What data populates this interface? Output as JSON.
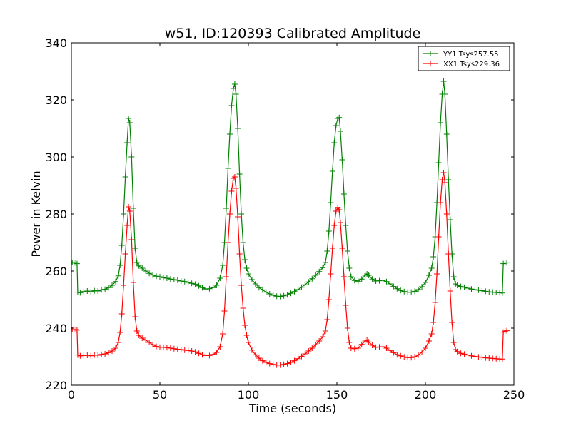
{
  "chart_data": {
    "type": "line",
    "title": "w51, ID:120393 Calibrated Amplitude",
    "xlabel": "Time (seconds)",
    "ylabel": "Power in Kelvin",
    "xlim": [
      0,
      250
    ],
    "ylim": [
      220,
      340
    ],
    "xticks": [
      0,
      50,
      100,
      150,
      200,
      250
    ],
    "yticks": [
      220,
      240,
      260,
      280,
      300,
      320,
      340
    ],
    "grid": false,
    "legend_position": "top-right",
    "marker": "+",
    "series": [
      {
        "name": "YY1 Tsys257.55",
        "color": "#008000",
        "points": [
          [
            0.5,
            263
          ],
          [
            1.5,
            262.8
          ],
          [
            2.5,
            262.9
          ],
          [
            3.2,
            262.6
          ],
          [
            3.6,
            252.6
          ],
          [
            5,
            252.4
          ],
          [
            7,
            252.8
          ],
          [
            9,
            253.0
          ],
          [
            11,
            252.7
          ],
          [
            13,
            253.1
          ],
          [
            15,
            253.0
          ],
          [
            17,
            253.4
          ],
          [
            19,
            253.6
          ],
          [
            21,
            254.2
          ],
          [
            23,
            255.0
          ],
          [
            25,
            256.3
          ],
          [
            26.5,
            258.3
          ],
          [
            27.5,
            262
          ],
          [
            28.5,
            269
          ],
          [
            29.5,
            280
          ],
          [
            30.5,
            293
          ],
          [
            31.5,
            305
          ],
          [
            32.3,
            313.5
          ],
          [
            33,
            312
          ],
          [
            34,
            300
          ],
          [
            35,
            282
          ],
          [
            36,
            268
          ],
          [
            37,
            263
          ],
          [
            38,
            261.8
          ],
          [
            40,
            261
          ],
          [
            42,
            260
          ],
          [
            44,
            259.2
          ],
          [
            46,
            258.6
          ],
          [
            48,
            258.2
          ],
          [
            50,
            258
          ],
          [
            52,
            257.7
          ],
          [
            54,
            257.5
          ],
          [
            56,
            257.2
          ],
          [
            58,
            257.0
          ],
          [
            60,
            256.8
          ],
          [
            62,
            256.5
          ],
          [
            64,
            256.3
          ],
          [
            66,
            256
          ],
          [
            68,
            255.7
          ],
          [
            70,
            255.4
          ],
          [
            72,
            254.8
          ],
          [
            74,
            254.2
          ],
          [
            76,
            253.7
          ],
          [
            78,
            253.8
          ],
          [
            80,
            254.2
          ],
          [
            82,
            255
          ],
          [
            84,
            257.5
          ],
          [
            85.5,
            262
          ],
          [
            86.5,
            270
          ],
          [
            87.5,
            282
          ],
          [
            88.5,
            296
          ],
          [
            89.5,
            308
          ],
          [
            90.5,
            318
          ],
          [
            91.5,
            324
          ],
          [
            92.3,
            325.5
          ],
          [
            93,
            322
          ],
          [
            94,
            310
          ],
          [
            95,
            294
          ],
          [
            96,
            280
          ],
          [
            97,
            270
          ],
          [
            98,
            264
          ],
          [
            99,
            261
          ],
          [
            100,
            259
          ],
          [
            102,
            257
          ],
          [
            104,
            255.5
          ],
          [
            106,
            254.2
          ],
          [
            108,
            253.4
          ],
          [
            110,
            252.6
          ],
          [
            112,
            252.0
          ],
          [
            114,
            251.5
          ],
          [
            116,
            251.2
          ],
          [
            118,
            251.1
          ],
          [
            120,
            251.3
          ],
          [
            122,
            251.7
          ],
          [
            124,
            252.2
          ],
          [
            126,
            252.8
          ],
          [
            128,
            253.5
          ],
          [
            130,
            254.3
          ],
          [
            132,
            255.2
          ],
          [
            134,
            256.2
          ],
          [
            136,
            257.3
          ],
          [
            138,
            258.5
          ],
          [
            140,
            259.8
          ],
          [
            142,
            261.2
          ],
          [
            143.5,
            263
          ],
          [
            144.5,
            267
          ],
          [
            145.5,
            274
          ],
          [
            146.5,
            284
          ],
          [
            147.5,
            295
          ],
          [
            148.5,
            305
          ],
          [
            149.5,
            311
          ],
          [
            150.5,
            313.5
          ],
          [
            151.3,
            313.8
          ],
          [
            152,
            309
          ],
          [
            153,
            299
          ],
          [
            154,
            287
          ],
          [
            155,
            276
          ],
          [
            156,
            267
          ],
          [
            157,
            261
          ],
          [
            158,
            258
          ],
          [
            160,
            256.7
          ],
          [
            162,
            256.4
          ],
          [
            164,
            257.2
          ],
          [
            166,
            258.5
          ],
          [
            167,
            259
          ],
          [
            168,
            258.5
          ],
          [
            170,
            257.2
          ],
          [
            172,
            256.5
          ],
          [
            174,
            256.6
          ],
          [
            176,
            256.8
          ],
          [
            178,
            256.3
          ],
          [
            180,
            255.5
          ],
          [
            182,
            254.6
          ],
          [
            184,
            253.8
          ],
          [
            186,
            253.2
          ],
          [
            188,
            252.8
          ],
          [
            190,
            252.6
          ],
          [
            192,
            252.6
          ],
          [
            194,
            252.9
          ],
          [
            196,
            253.5
          ],
          [
            198,
            254.5
          ],
          [
            200,
            256
          ],
          [
            202,
            258.5
          ],
          [
            203.5,
            261
          ],
          [
            204.5,
            265
          ],
          [
            205.5,
            272
          ],
          [
            206.5,
            284
          ],
          [
            207.5,
            298
          ],
          [
            208.5,
            312
          ],
          [
            209.5,
            322
          ],
          [
            210.3,
            326.5
          ],
          [
            211,
            322
          ],
          [
            212,
            308
          ],
          [
            213,
            292
          ],
          [
            214,
            278
          ],
          [
            215,
            266
          ],
          [
            216,
            258
          ],
          [
            217,
            255.5
          ],
          [
            218,
            255.0
          ],
          [
            220,
            254.6
          ],
          [
            222,
            254.3
          ],
          [
            224,
            254.0
          ],
          [
            226,
            253.7
          ],
          [
            228,
            253.5
          ],
          [
            230,
            253.3
          ],
          [
            232,
            253.1
          ],
          [
            234,
            252.9
          ],
          [
            236,
            252.7
          ],
          [
            238,
            252.6
          ],
          [
            240,
            252.5
          ],
          [
            242,
            252.4
          ],
          [
            243.5,
            252.3
          ],
          [
            244,
            262.6
          ],
          [
            245,
            262.8
          ],
          [
            246,
            262.9
          ]
        ]
      },
      {
        "name": "XX1 Tsys229.36",
        "color": "#ff0000",
        "points": [
          [
            0.5,
            239.5
          ],
          [
            1.5,
            239.4
          ],
          [
            2.5,
            239.5
          ],
          [
            3.2,
            239.3
          ],
          [
            3.6,
            230.6
          ],
          [
            5,
            230.3
          ],
          [
            7,
            230.4
          ],
          [
            9,
            230.5
          ],
          [
            11,
            230.3
          ],
          [
            13,
            230.6
          ],
          [
            15,
            230.5
          ],
          [
            17,
            230.8
          ],
          [
            19,
            231.0
          ],
          [
            21,
            231.4
          ],
          [
            23,
            232.0
          ],
          [
            25,
            233.0
          ],
          [
            26.5,
            235
          ],
          [
            27.5,
            238.5
          ],
          [
            28.5,
            245
          ],
          [
            29.5,
            255
          ],
          [
            30.5,
            266
          ],
          [
            31.5,
            276
          ],
          [
            32.3,
            282.5
          ],
          [
            33,
            281
          ],
          [
            34,
            271
          ],
          [
            35,
            256
          ],
          [
            36,
            244
          ],
          [
            37,
            239
          ],
          [
            38,
            237.5
          ],
          [
            40,
            236.5
          ],
          [
            42,
            235.8
          ],
          [
            44,
            235
          ],
          [
            46,
            234.2
          ],
          [
            48,
            233.6
          ],
          [
            50,
            233.3
          ],
          [
            52,
            233.3
          ],
          [
            54,
            233.2
          ],
          [
            56,
            233.0
          ],
          [
            58,
            232.8
          ],
          [
            60,
            232.6
          ],
          [
            62,
            232.5
          ],
          [
            64,
            232.3
          ],
          [
            66,
            232.2
          ],
          [
            68,
            232.0
          ],
          [
            70,
            231.7
          ],
          [
            72,
            231.2
          ],
          [
            74,
            230.7
          ],
          [
            76,
            230.4
          ],
          [
            78,
            230.4
          ],
          [
            80,
            230.8
          ],
          [
            82,
            231.5
          ],
          [
            84,
            233.5
          ],
          [
            85.5,
            238
          ],
          [
            86.5,
            246
          ],
          [
            87.5,
            258
          ],
          [
            88.5,
            270
          ],
          [
            89.5,
            280
          ],
          [
            90.5,
            288
          ],
          [
            91.5,
            292.5
          ],
          [
            92.3,
            293
          ],
          [
            93,
            289
          ],
          [
            94,
            279
          ],
          [
            95,
            266
          ],
          [
            96,
            255
          ],
          [
            97,
            247
          ],
          [
            98,
            241
          ],
          [
            99,
            237.5
          ],
          [
            100,
            235
          ],
          [
            102,
            232.3
          ],
          [
            104,
            230.7
          ],
          [
            106,
            229.5
          ],
          [
            108,
            228.6
          ],
          [
            110,
            228.0
          ],
          [
            112,
            227.6
          ],
          [
            114,
            227.3
          ],
          [
            116,
            227.1
          ],
          [
            118,
            227.1
          ],
          [
            120,
            227.3
          ],
          [
            122,
            227.6
          ],
          [
            124,
            228.0
          ],
          [
            126,
            228.6
          ],
          [
            128,
            229.3
          ],
          [
            130,
            230.1
          ],
          [
            132,
            231.0
          ],
          [
            134,
            232.0
          ],
          [
            136,
            233.0
          ],
          [
            138,
            234.2
          ],
          [
            140,
            235.5
          ],
          [
            142,
            237
          ],
          [
            143.5,
            239
          ],
          [
            144.5,
            243
          ],
          [
            145.5,
            250
          ],
          [
            146.5,
            259
          ],
          [
            147.5,
            268
          ],
          [
            148.5,
            276
          ],
          [
            149.5,
            281
          ],
          [
            150.5,
            282.3
          ],
          [
            151.3,
            281.5
          ],
          [
            152,
            277
          ],
          [
            153,
            268
          ],
          [
            154,
            258
          ],
          [
            155,
            248
          ],
          [
            156,
            240
          ],
          [
            157,
            235
          ],
          [
            158,
            233
          ],
          [
            160,
            232.8
          ],
          [
            162,
            233.0
          ],
          [
            164,
            234.3
          ],
          [
            166,
            235.5
          ],
          [
            167,
            235.8
          ],
          [
            168,
            235.2
          ],
          [
            170,
            234
          ],
          [
            172,
            233.3
          ],
          [
            174,
            233.4
          ],
          [
            176,
            233.5
          ],
          [
            178,
            233.0
          ],
          [
            180,
            232.2
          ],
          [
            182,
            231.4
          ],
          [
            184,
            230.7
          ],
          [
            186,
            230.3
          ],
          [
            188,
            229.9
          ],
          [
            190,
            229.7
          ],
          [
            192,
            229.7
          ],
          [
            194,
            230.0
          ],
          [
            196,
            230.6
          ],
          [
            198,
            231.6
          ],
          [
            200,
            233
          ],
          [
            202,
            235.5
          ],
          [
            203.5,
            238
          ],
          [
            204.5,
            242
          ],
          [
            205.5,
            249
          ],
          [
            206.5,
            259
          ],
          [
            207.5,
            272
          ],
          [
            208.5,
            284
          ],
          [
            209.5,
            292
          ],
          [
            210.3,
            294.5
          ],
          [
            211,
            291
          ],
          [
            212,
            280
          ],
          [
            213,
            266
          ],
          [
            214,
            253
          ],
          [
            215,
            242
          ],
          [
            216,
            235
          ],
          [
            217,
            232.5
          ],
          [
            218,
            231.8
          ],
          [
            220,
            231.2
          ],
          [
            222,
            230.9
          ],
          [
            224,
            230.6
          ],
          [
            226,
            230.3
          ],
          [
            228,
            230.1
          ],
          [
            230,
            229.9
          ],
          [
            232,
            229.8
          ],
          [
            234,
            229.6
          ],
          [
            236,
            229.5
          ],
          [
            238,
            229.4
          ],
          [
            240,
            229.3
          ],
          [
            242,
            229.2
          ],
          [
            243.5,
            229.2
          ],
          [
            244,
            238.6
          ],
          [
            245,
            238.9
          ],
          [
            246,
            239.1
          ]
        ]
      }
    ]
  }
}
